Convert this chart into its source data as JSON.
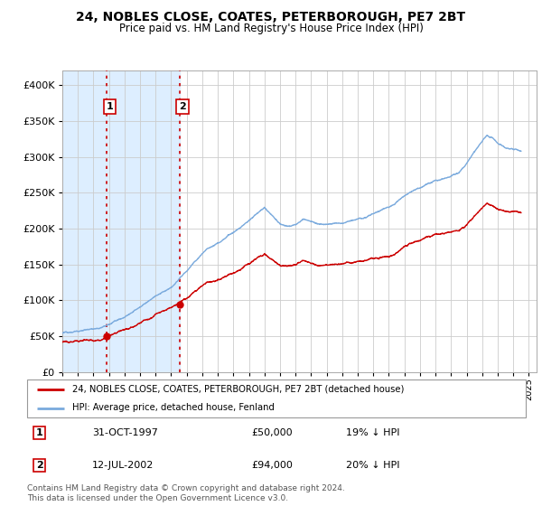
{
  "title": "24, NOBLES CLOSE, COATES, PETERBOROUGH, PE7 2BT",
  "subtitle": "Price paid vs. HM Land Registry's House Price Index (HPI)",
  "legend_line1": "24, NOBLES CLOSE, COATES, PETERBOROUGH, PE7 2BT (detached house)",
  "legend_line2": "HPI: Average price, detached house, Fenland",
  "transaction1_date": "31-OCT-1997",
  "transaction1_price": "£50,000",
  "transaction1_hpi": "19% ↓ HPI",
  "transaction1_year": 1997.83,
  "transaction1_value": 50000,
  "transaction2_date": "12-JUL-2002",
  "transaction2_price": "£94,000",
  "transaction2_hpi": "20% ↓ HPI",
  "transaction2_year": 2002.53,
  "transaction2_value": 94000,
  "footer": "Contains HM Land Registry data © Crown copyright and database right 2024.\nThis data is licensed under the Open Government Licence v3.0.",
  "price_line_color": "#cc0000",
  "hpi_line_color": "#7aaadd",
  "highlight_box_color": "#ddeeff",
  "vline_color": "#cc0000",
  "ylim_max": 420000,
  "xlim_start": 1995.0,
  "xlim_end": 2025.5,
  "grid_color": "#cccccc"
}
